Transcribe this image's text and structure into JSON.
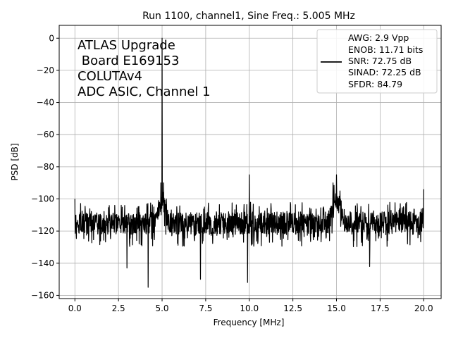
{
  "chart_data": {
    "type": "line",
    "title": "Run 1100, channel1, Sine Freq.: 5.005 MHz",
    "xlabel": "Frequency [MHz]",
    "ylabel": "PSD [dB]",
    "xlim": [
      -0.9,
      21.0
    ],
    "ylim": [
      -162,
      8
    ],
    "xticks": [
      0.0,
      2.5,
      5.0,
      7.5,
      10.0,
      12.5,
      15.0,
      17.5,
      20.0
    ],
    "xtick_labels": [
      "0.0",
      "2.5",
      "5.0",
      "7.5",
      "10.0",
      "12.5",
      "15.0",
      "17.5",
      "20.0"
    ],
    "yticks": [
      0,
      -20,
      -40,
      -60,
      -80,
      -100,
      -120,
      -140,
      -160
    ],
    "ytick_labels": [
      "0",
      "−20",
      "−40",
      "−60",
      "−80",
      "−100",
      "−120",
      "−140",
      "−160"
    ],
    "grid": true,
    "line_color": "#000000",
    "annotation_lines": [
      "ATLAS Upgrade",
      " Board E169153",
      "COLUTAv4",
      "ADC ASIC, Channel 1"
    ],
    "legend": {
      "position": "top-right",
      "lines": [
        "AWG: 2.9 Vpp",
        "ENOB: 11.71 bits",
        "SNR: 72.75 dB",
        "SINAD: 72.25 dB",
        "SFDR: 84.79"
      ]
    },
    "series": [
      {
        "noise_floor_db": -115,
        "noise_range_db": [
          -130,
          -102
        ],
        "features": [
          {
            "x": 0.0,
            "y": -100
          },
          {
            "x": 2.99,
            "y": -143
          },
          {
            "x": 4.2,
            "y": -155
          },
          {
            "x": 4.8,
            "y": -101
          },
          {
            "x": 4.93,
            "y": -90
          },
          {
            "x": 5.005,
            "y": 0
          },
          {
            "x": 5.08,
            "y": -90
          },
          {
            "x": 5.25,
            "y": -100
          },
          {
            "x": 7.2,
            "y": -150
          },
          {
            "x": 9.9,
            "y": -152
          },
          {
            "x": 10.0,
            "y": -85
          },
          {
            "x": 14.8,
            "y": -90
          },
          {
            "x": 15.0,
            "y": -85
          },
          {
            "x": 15.2,
            "y": -95
          },
          {
            "x": 16.9,
            "y": -142
          },
          {
            "x": 20.0,
            "y": -94
          }
        ]
      }
    ]
  }
}
